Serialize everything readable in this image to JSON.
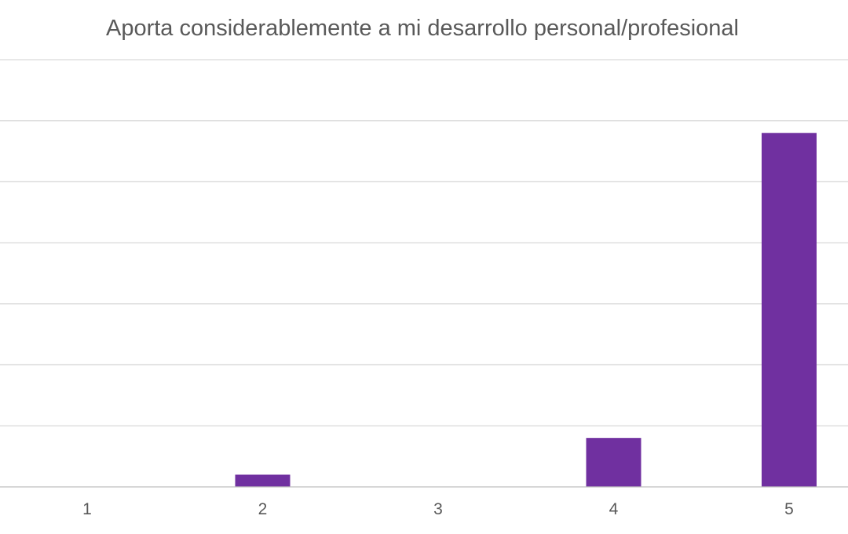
{
  "chart_data": {
    "type": "bar",
    "title": "Aporta considerablemente a mi desarrollo personal/profesional",
    "xlabel": "",
    "ylabel": "",
    "categories": [
      "1",
      "2",
      "3",
      "4",
      "5"
    ],
    "series": [
      {
        "values": [
          0,
          1,
          0,
          4,
          29
        ],
        "color": "#7030a0"
      }
    ],
    "ylim": [
      0,
      35
    ],
    "ytick_step": 5,
    "show_y_tick_labels": false,
    "grid": true,
    "legend": "none"
  }
}
